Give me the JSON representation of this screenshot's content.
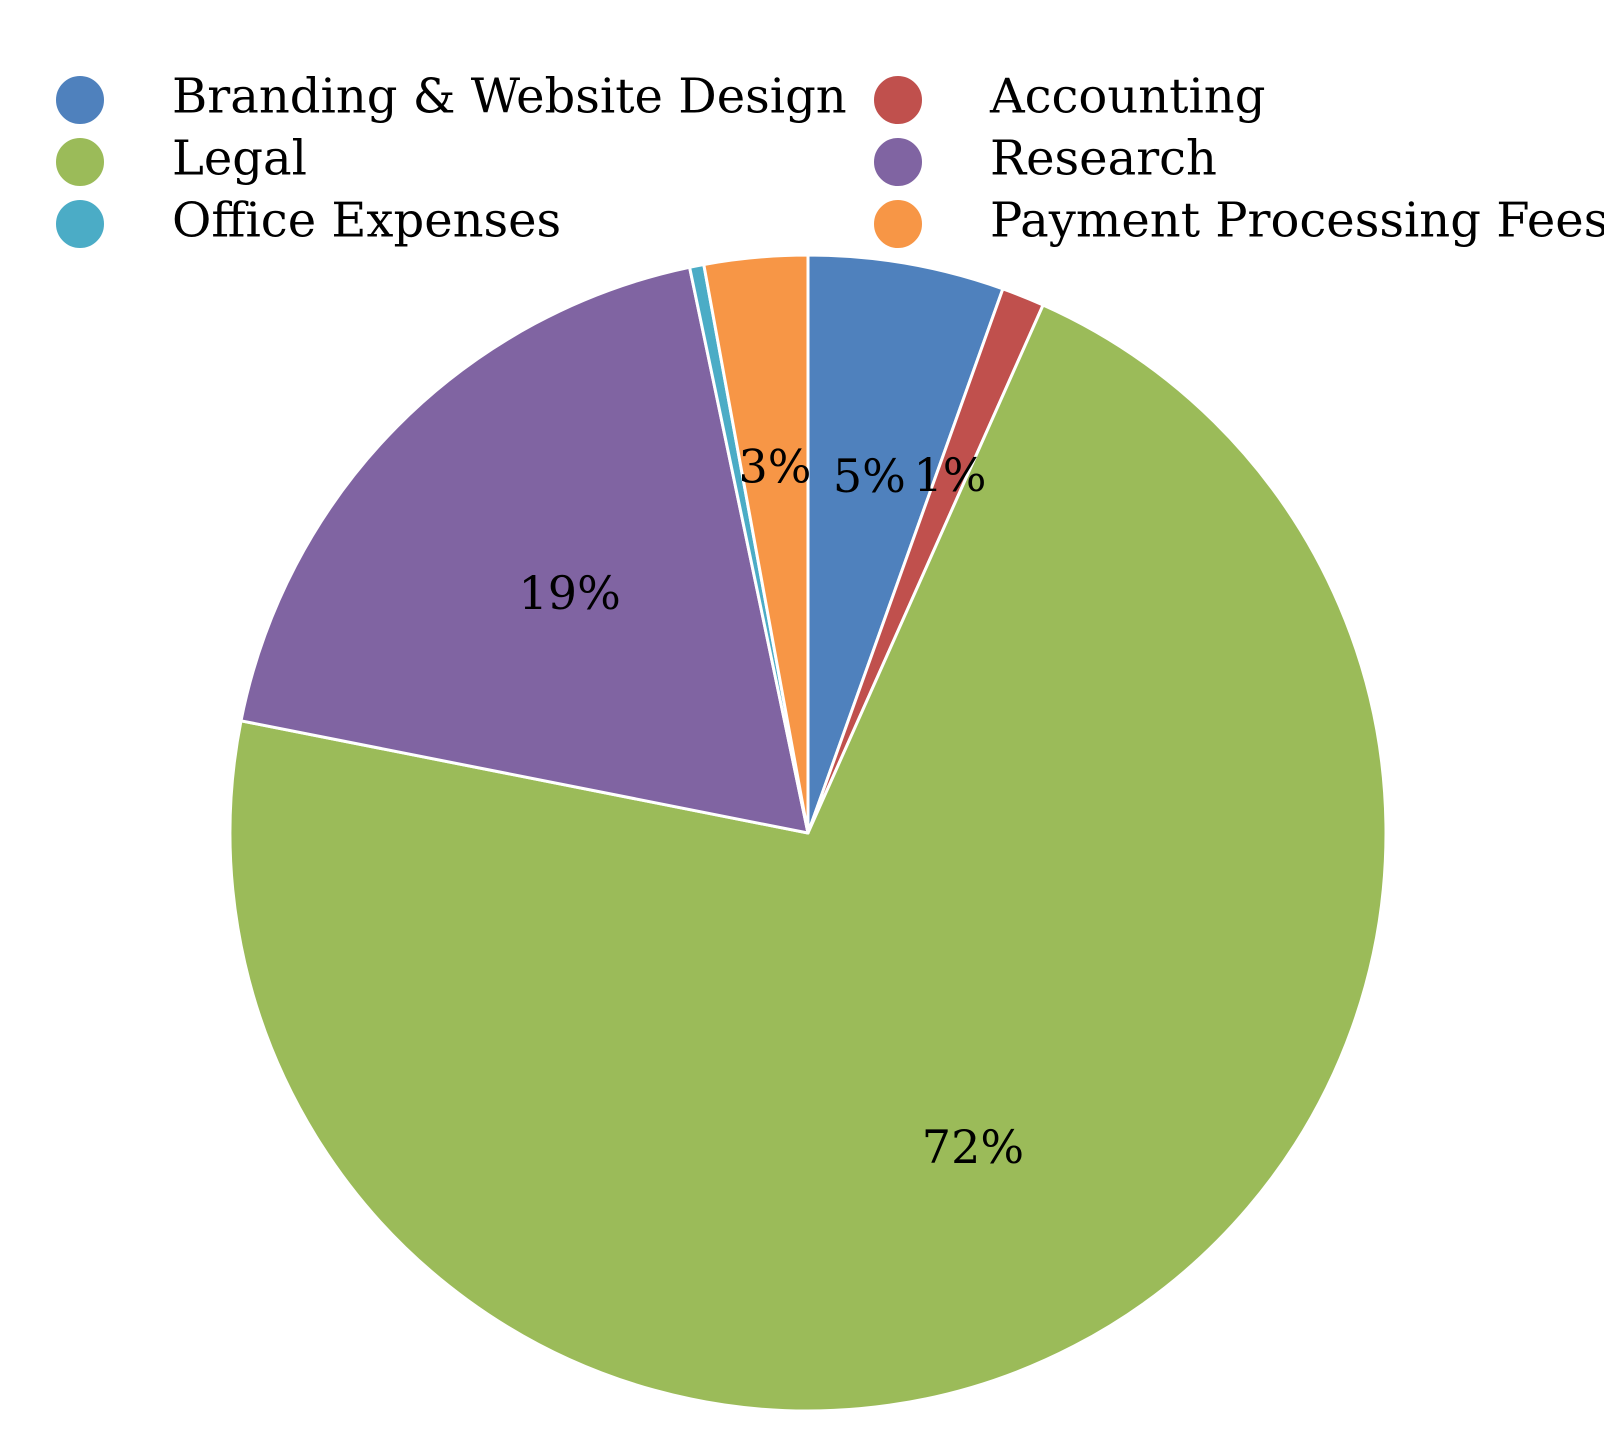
{
  "chart_data": {
    "type": "pie",
    "title": "",
    "legend_position": "top",
    "slices": [
      {
        "name": "Branding & Website Design",
        "value": 5.5,
        "label": "5%",
        "color": "#4f81bd"
      },
      {
        "name": "Accounting",
        "value": 1.2,
        "label": "1%",
        "color": "#c0504d"
      },
      {
        "name": "Legal",
        "value": 71.8,
        "label": "72%",
        "color": "#9bbb59"
      },
      {
        "name": "Research",
        "value": 18.7,
        "label": "19%",
        "color": "#8064a2"
      },
      {
        "name": "Office Expenses",
        "value": 0.4,
        "label": "",
        "color": "#4bacc6"
      },
      {
        "name": "Payment Processing Fees",
        "value": 2.9,
        "label": "3%",
        "color": "#f79646"
      }
    ],
    "legend_order": [
      "Branding & Website Design",
      "Accounting",
      "Legal",
      "Research",
      "Office Expenses",
      "Payment Processing Fees"
    ]
  }
}
